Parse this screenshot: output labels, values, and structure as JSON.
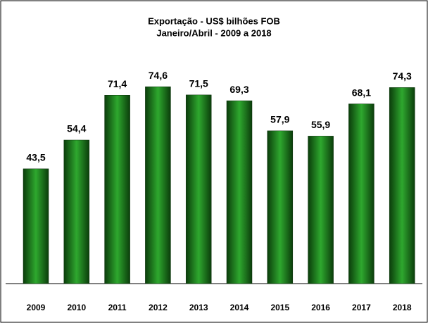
{
  "chart_data": {
    "type": "bar",
    "title": "Exportação - US$ bilhões FOB",
    "subtitle": "Janeiro/Abril - 2009 a 2018",
    "categories": [
      "2009",
      "2010",
      "2011",
      "2012",
      "2013",
      "2014",
      "2015",
      "2016",
      "2017",
      "2018"
    ],
    "values": [
      43.5,
      54.4,
      71.4,
      74.6,
      71.5,
      69.3,
      57.9,
      55.9,
      68.1,
      74.3
    ],
    "value_labels": [
      "43,5",
      "54,4",
      "71,4",
      "74,6",
      "71,5",
      "69,3",
      "57,9",
      "55,9",
      "68,1",
      "74,3"
    ],
    "color": "#2ea82e"
  }
}
